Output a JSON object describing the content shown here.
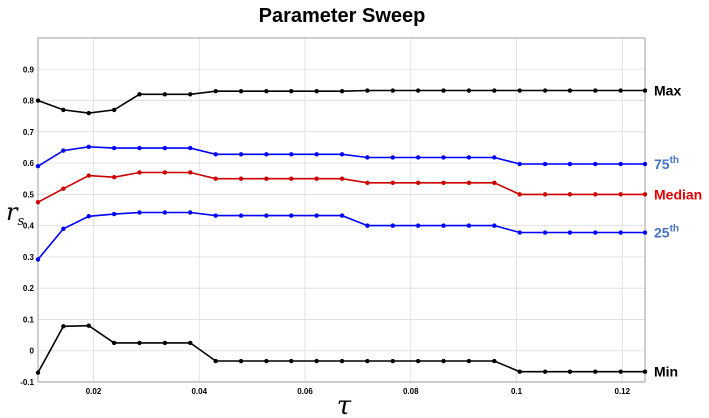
{
  "chart_data": {
    "type": "line",
    "title": "Parameter Sweep",
    "xlabel": "τ",
    "ylabel": "r",
    "ylabel_sub": "s",
    "xlim": [
      0.0095,
      0.1243
    ],
    "ylim": [
      -0.1,
      1.0
    ],
    "grid": true,
    "x_ticks": [
      0.02,
      0.04,
      0.06,
      0.08,
      0.1,
      0.12
    ],
    "x_tick_labels": [
      "0.02",
      "0.04",
      "0.06",
      "0.08",
      "0.1",
      "0.12"
    ],
    "y_ticks": [
      -0.1,
      0,
      0.1,
      0.2,
      0.3,
      0.4,
      0.5,
      0.6,
      0.7,
      0.8,
      0.9
    ],
    "y_tick_labels": [
      "-0.1",
      "0",
      "0.1",
      "0.2",
      "0.3",
      "0.4",
      "0.5",
      "0.6",
      "0.7",
      "0.8",
      "0.9"
    ],
    "x": [
      0.0095,
      0.0143,
      0.0191,
      0.0239,
      0.0287,
      0.0335,
      0.0383,
      0.0431,
      0.0479,
      0.0527,
      0.0574,
      0.0622,
      0.067,
      0.0718,
      0.0766,
      0.0814,
      0.0862,
      0.091,
      0.0958,
      0.1006,
      0.1054,
      0.1101,
      0.1149,
      0.1197,
      0.1243
    ],
    "series": [
      {
        "name": "Max",
        "label_sup": "",
        "color": "#000000",
        "label_color": "#000000",
        "values": [
          0.8,
          0.77,
          0.76,
          0.77,
          0.82,
          0.82,
          0.82,
          0.83,
          0.83,
          0.83,
          0.83,
          0.83,
          0.83,
          0.832,
          0.832,
          0.832,
          0.832,
          0.832,
          0.832,
          0.832,
          0.832,
          0.832,
          0.832,
          0.832,
          0.832
        ]
      },
      {
        "name": "75",
        "label_sup": "th",
        "color": "#0000ff",
        "label_color": "#4472c4",
        "values": [
          0.59,
          0.64,
          0.652,
          0.648,
          0.648,
          0.648,
          0.648,
          0.628,
          0.628,
          0.628,
          0.628,
          0.628,
          0.628,
          0.618,
          0.618,
          0.618,
          0.618,
          0.618,
          0.618,
          0.597,
          0.597,
          0.597,
          0.597,
          0.597,
          0.597
        ]
      },
      {
        "name": "Median",
        "label_sup": "",
        "color": "#cc0000",
        "label_color": "#e60000",
        "values": [
          0.475,
          0.518,
          0.56,
          0.555,
          0.57,
          0.57,
          0.57,
          0.55,
          0.55,
          0.55,
          0.55,
          0.55,
          0.55,
          0.537,
          0.537,
          0.537,
          0.537,
          0.537,
          0.537,
          0.5,
          0.5,
          0.5,
          0.5,
          0.5,
          0.5
        ]
      },
      {
        "name": "25",
        "label_sup": "th",
        "color": "#0000ff",
        "label_color": "#4472c4",
        "values": [
          0.292,
          0.39,
          0.43,
          0.437,
          0.442,
          0.442,
          0.442,
          0.432,
          0.432,
          0.432,
          0.432,
          0.432,
          0.432,
          0.4,
          0.4,
          0.4,
          0.4,
          0.4,
          0.4,
          0.378,
          0.378,
          0.378,
          0.378,
          0.378,
          0.378
        ]
      },
      {
        "name": "Min",
        "label_sup": "",
        "color": "#000000",
        "label_color": "#000000",
        "values": [
          -0.07,
          0.078,
          0.08,
          0.025,
          0.025,
          0.025,
          0.025,
          -0.033,
          -0.033,
          -0.033,
          -0.033,
          -0.033,
          -0.033,
          -0.033,
          -0.033,
          -0.033,
          -0.033,
          -0.033,
          -0.033,
          -0.067,
          -0.067,
          -0.067,
          -0.067,
          -0.067,
          -0.067
        ]
      }
    ]
  }
}
